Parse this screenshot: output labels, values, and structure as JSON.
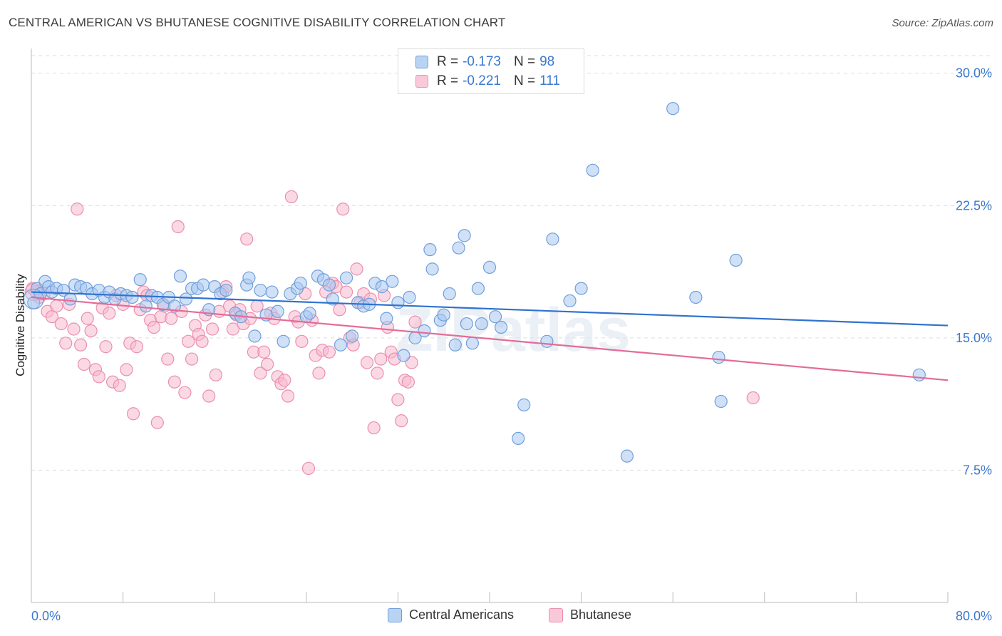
{
  "header": {
    "title": "CENTRAL AMERICAN VS BHUTANESE COGNITIVE DISABILITY CORRELATION CHART",
    "source": "Source: ZipAtlas.com"
  },
  "colors": {
    "blue_fill": "#a9c8f0",
    "blue_stroke": "#6f9fdc",
    "blue_line": "#2f72cf",
    "pink_fill": "#f7b9ce",
    "pink_stroke": "#ea8fae",
    "pink_line": "#e46b97",
    "axis_text": "#3a78d0",
    "grid": "#dddddd"
  },
  "legend_top": {
    "rows": [
      {
        "r_label": "R =",
        "r_value": "-0.173",
        "n_label": "N =",
        "n_value": "98"
      },
      {
        "r_label": "R =",
        "r_value": "-0.221",
        "n_label": "N =",
        "n_value": "111"
      }
    ]
  },
  "legend_bottom": {
    "items": [
      "Central Americans",
      "Bhutanese"
    ]
  },
  "watermark": "ZIPatlas",
  "chart_data": {
    "type": "scatter",
    "title": "CENTRAL AMERICAN VS BHUTANESE COGNITIVE DISABILITY CORRELATION CHART",
    "xlabel": "",
    "ylabel": "Cognitive Disability",
    "xlim": [
      0,
      80
    ],
    "ylim": [
      0,
      31
    ],
    "x_tick_labels": [
      "0.0%",
      "80.0%"
    ],
    "y_ticks": [
      7.5,
      15.0,
      22.5,
      30.0
    ],
    "y_tick_labels": [
      "7.5%",
      "15.0%",
      "22.5%",
      "30.0%"
    ],
    "grid": "horizontal dashed",
    "legend_position": "top-center",
    "series": [
      {
        "name": "Central Americans",
        "color": "#a9c8f0",
        "trend": {
          "x": [
            0,
            80
          ],
          "y": [
            17.6,
            15.7
          ]
        },
        "points": [
          [
            0.2,
            17.0
          ],
          [
            0.5,
            17.8
          ],
          [
            0.8,
            17.5
          ],
          [
            1.2,
            18.2
          ],
          [
            1.5,
            17.9
          ],
          [
            1.8,
            17.6
          ],
          [
            2.2,
            17.8
          ],
          [
            2.8,
            17.7
          ],
          [
            3.4,
            17.2
          ],
          [
            3.8,
            18.0
          ],
          [
            4.3,
            17.9
          ],
          [
            4.8,
            17.8
          ],
          [
            5.3,
            17.5
          ],
          [
            5.9,
            17.7
          ],
          [
            6.4,
            17.3
          ],
          [
            6.8,
            17.6
          ],
          [
            7.3,
            17.2
          ],
          [
            7.8,
            17.5
          ],
          [
            8.3,
            17.4
          ],
          [
            8.8,
            17.3
          ],
          [
            9.5,
            18.3
          ],
          [
            10.0,
            16.8
          ],
          [
            10.5,
            17.4
          ],
          [
            11.0,
            17.3
          ],
          [
            11.5,
            16.9
          ],
          [
            12.0,
            17.3
          ],
          [
            12.5,
            16.8
          ],
          [
            13.0,
            18.5
          ],
          [
            13.5,
            17.2
          ],
          [
            14.0,
            17.8
          ],
          [
            14.5,
            17.8
          ],
          [
            15.0,
            18.0
          ],
          [
            15.5,
            16.6
          ],
          [
            16.0,
            17.9
          ],
          [
            16.5,
            17.5
          ],
          [
            17.0,
            17.7
          ],
          [
            17.8,
            16.4
          ],
          [
            18.3,
            16.2
          ],
          [
            18.8,
            18.0
          ],
          [
            19.0,
            18.4
          ],
          [
            19.5,
            15.1
          ],
          [
            20.0,
            17.7
          ],
          [
            20.5,
            16.3
          ],
          [
            21.0,
            17.6
          ],
          [
            21.5,
            16.5
          ],
          [
            22.0,
            14.8
          ],
          [
            22.6,
            17.5
          ],
          [
            23.2,
            17.8
          ],
          [
            23.5,
            18.1
          ],
          [
            24.0,
            16.2
          ],
          [
            24.3,
            16.4
          ],
          [
            25.0,
            18.5
          ],
          [
            25.5,
            18.3
          ],
          [
            26.0,
            18.0
          ],
          [
            26.3,
            17.2
          ],
          [
            27.0,
            14.6
          ],
          [
            27.5,
            18.4
          ],
          [
            28.0,
            15.1
          ],
          [
            28.5,
            17.0
          ],
          [
            29.0,
            16.8
          ],
          [
            29.5,
            16.9
          ],
          [
            30.0,
            18.1
          ],
          [
            30.6,
            17.9
          ],
          [
            31.0,
            16.1
          ],
          [
            31.5,
            18.2
          ],
          [
            32.0,
            17.0
          ],
          [
            32.5,
            14.0
          ],
          [
            33.0,
            17.3
          ],
          [
            33.5,
            15.0
          ],
          [
            34.3,
            15.4
          ],
          [
            34.8,
            20.0
          ],
          [
            35.0,
            18.9
          ],
          [
            35.7,
            16.0
          ],
          [
            36.0,
            16.3
          ],
          [
            36.5,
            17.5
          ],
          [
            37.0,
            14.6
          ],
          [
            37.3,
            20.1
          ],
          [
            37.8,
            20.8
          ],
          [
            38.0,
            15.8
          ],
          [
            38.5,
            14.7
          ],
          [
            39.0,
            17.8
          ],
          [
            39.3,
            15.8
          ],
          [
            40.0,
            19.0
          ],
          [
            40.5,
            16.2
          ],
          [
            41.0,
            15.6
          ],
          [
            42.5,
            9.3
          ],
          [
            43.0,
            11.2
          ],
          [
            45.0,
            14.8
          ],
          [
            45.5,
            20.6
          ],
          [
            47.0,
            17.1
          ],
          [
            48.0,
            17.8
          ],
          [
            49.0,
            24.5
          ],
          [
            52.0,
            8.3
          ],
          [
            56.0,
            28.0
          ],
          [
            58.0,
            17.3
          ],
          [
            60.0,
            13.9
          ],
          [
            60.2,
            11.4
          ],
          [
            61.5,
            19.4
          ],
          [
            77.5,
            12.9
          ]
        ]
      },
      {
        "name": "Bhutanese",
        "color": "#f7b9ce",
        "trend": {
          "x": [
            0,
            80
          ],
          "y": [
            17.3,
            12.6
          ]
        },
        "points": [
          [
            0.1,
            17.8
          ],
          [
            0.4,
            17.6
          ],
          [
            0.7,
            17.3
          ],
          [
            1.1,
            17.5
          ],
          [
            1.4,
            16.5
          ],
          [
            1.8,
            16.2
          ],
          [
            2.2,
            16.8
          ],
          [
            2.6,
            15.8
          ],
          [
            3.0,
            14.7
          ],
          [
            3.3,
            16.9
          ],
          [
            3.7,
            15.5
          ],
          [
            4.0,
            22.3
          ],
          [
            4.3,
            14.6
          ],
          [
            4.6,
            13.5
          ],
          [
            4.9,
            16.1
          ],
          [
            5.2,
            15.4
          ],
          [
            5.6,
            13.2
          ],
          [
            5.9,
            12.8
          ],
          [
            6.2,
            16.7
          ],
          [
            6.5,
            14.5
          ],
          [
            6.8,
            16.4
          ],
          [
            7.1,
            12.5
          ],
          [
            7.4,
            17.4
          ],
          [
            7.7,
            12.3
          ],
          [
            8.0,
            16.9
          ],
          [
            8.3,
            13.2
          ],
          [
            8.6,
            14.7
          ],
          [
            8.9,
            10.7
          ],
          [
            9.2,
            14.5
          ],
          [
            9.5,
            16.6
          ],
          [
            9.8,
            17.6
          ],
          [
            10.1,
            17.4
          ],
          [
            10.4,
            16.0
          ],
          [
            10.7,
            15.6
          ],
          [
            11.0,
            10.2
          ],
          [
            11.3,
            16.2
          ],
          [
            11.6,
            16.8
          ],
          [
            11.9,
            13.8
          ],
          [
            12.2,
            16.1
          ],
          [
            12.5,
            12.5
          ],
          [
            12.8,
            21.3
          ],
          [
            13.1,
            16.5
          ],
          [
            13.4,
            11.9
          ],
          [
            13.7,
            14.8
          ],
          [
            14.0,
            13.8
          ],
          [
            14.3,
            15.7
          ],
          [
            14.6,
            15.2
          ],
          [
            14.9,
            14.8
          ],
          [
            15.2,
            16.3
          ],
          [
            15.5,
            11.7
          ],
          [
            15.8,
            15.5
          ],
          [
            16.1,
            12.9
          ],
          [
            16.4,
            16.5
          ],
          [
            16.7,
            17.6
          ],
          [
            17.0,
            17.9
          ],
          [
            17.3,
            16.8
          ],
          [
            17.6,
            15.5
          ],
          [
            17.9,
            16.3
          ],
          [
            18.2,
            16.6
          ],
          [
            18.5,
            15.8
          ],
          [
            18.8,
            20.6
          ],
          [
            19.1,
            16.1
          ],
          [
            19.4,
            14.2
          ],
          [
            19.7,
            16.8
          ],
          [
            20.0,
            13.0
          ],
          [
            20.3,
            14.2
          ],
          [
            20.6,
            13.5
          ],
          [
            20.9,
            16.4
          ],
          [
            21.2,
            16.1
          ],
          [
            21.5,
            12.8
          ],
          [
            21.8,
            12.4
          ],
          [
            22.1,
            12.6
          ],
          [
            22.4,
            11.7
          ],
          [
            22.7,
            23.0
          ],
          [
            23.0,
            16.2
          ],
          [
            23.3,
            15.9
          ],
          [
            23.6,
            14.8
          ],
          [
            23.9,
            17.5
          ],
          [
            24.2,
            7.6
          ],
          [
            24.5,
            16.0
          ],
          [
            24.8,
            14.0
          ],
          [
            25.1,
            13.0
          ],
          [
            25.4,
            14.3
          ],
          [
            25.7,
            17.6
          ],
          [
            26.0,
            14.2
          ],
          [
            26.3,
            18.1
          ],
          [
            26.6,
            17.9
          ],
          [
            26.9,
            16.6
          ],
          [
            27.2,
            22.3
          ],
          [
            27.5,
            17.6
          ],
          [
            27.8,
            15.0
          ],
          [
            28.1,
            14.6
          ],
          [
            28.4,
            18.9
          ],
          [
            28.7,
            17.0
          ],
          [
            29.0,
            17.5
          ],
          [
            29.3,
            13.6
          ],
          [
            29.6,
            17.2
          ],
          [
            29.9,
            9.9
          ],
          [
            30.2,
            13.0
          ],
          [
            30.5,
            13.8
          ],
          [
            30.8,
            17.4
          ],
          [
            31.1,
            15.6
          ],
          [
            31.4,
            14.2
          ],
          [
            31.7,
            13.8
          ],
          [
            32.0,
            11.5
          ],
          [
            32.3,
            10.3
          ],
          [
            32.6,
            12.6
          ],
          [
            32.9,
            12.5
          ],
          [
            33.2,
            13.6
          ],
          [
            33.5,
            15.9
          ],
          [
            63.0,
            11.6
          ]
        ]
      }
    ]
  }
}
